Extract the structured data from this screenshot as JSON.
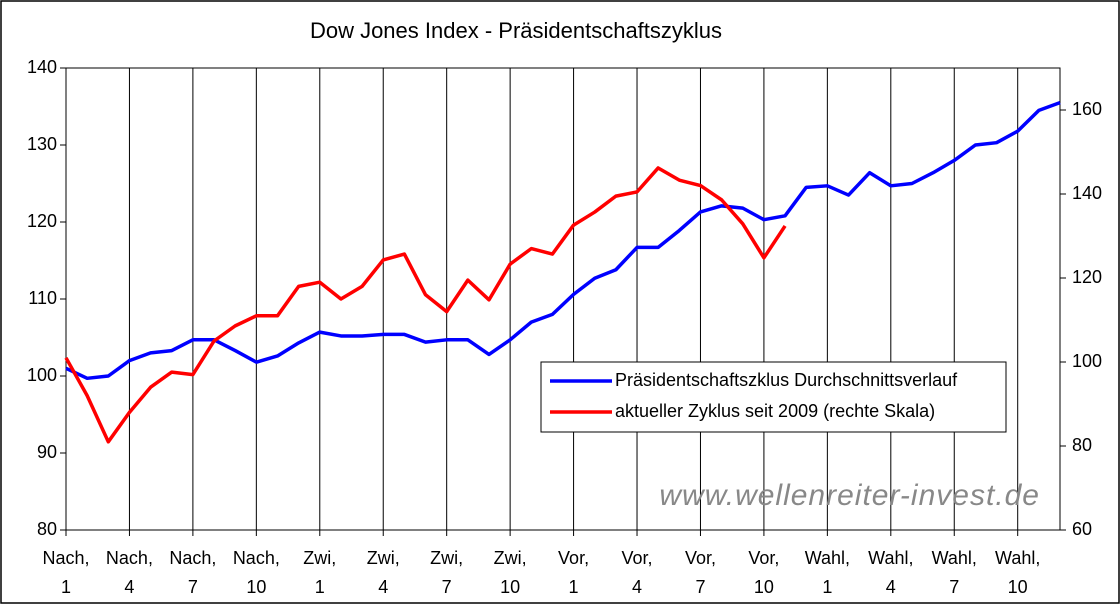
{
  "chart_data": {
    "type": "line",
    "title": "Dow Jones Index - Präsidentschaftszyklus",
    "categories": [
      "Nach,\n1",
      null,
      null,
      "Nach,\n4",
      null,
      null,
      "Nach,\n7",
      null,
      null,
      "Nach,\n10",
      null,
      null,
      "Zwi,\n1",
      null,
      null,
      "Zwi,\n4",
      null,
      null,
      "Zwi,\n7",
      null,
      null,
      "Zwi,\n10",
      null,
      null,
      "Vor,\n1",
      null,
      null,
      "Vor,\n4",
      null,
      null,
      "Vor,\n7",
      null,
      null,
      "Vor,\n10",
      null,
      null,
      "Wahl,\n1",
      null,
      null,
      "Wahl,\n4",
      null,
      null,
      "Wahl,\n7",
      null,
      null,
      "Wahl,\n10",
      null,
      null
    ],
    "series": [
      {
        "name": "Präsidentschaftszklus Durchschnittsverlauf",
        "color": "#0000ff",
        "axis": "y",
        "values": [
          101,
          99.7,
          100,
          102,
          103,
          103.3,
          104.7,
          104.7,
          103.3,
          101.8,
          102.6,
          104.3,
          105.7,
          105.2,
          105.2,
          105.4,
          105.4,
          104.4,
          104.7,
          104.7,
          102.8,
          104.7,
          107,
          108,
          110.6,
          112.7,
          113.8,
          116.7,
          116.7,
          118.9,
          121.3,
          122.1,
          121.8,
          120.3,
          120.8,
          124.5,
          124.7,
          123.5,
          126.4,
          124.7,
          125,
          126.4,
          128,
          130,
          130.3,
          131.8,
          134.5,
          135.5
        ]
      },
      {
        "name": "aktueller Zyklus seit 2009 (rechte Skala)",
        "color": "#ff0000",
        "axis": "y2",
        "values": [
          101,
          92,
          81,
          88,
          94,
          97.6,
          97,
          105,
          108.6,
          111,
          111,
          118,
          119,
          115,
          118,
          124.3,
          125.7,
          116,
          112,
          119.5,
          114.8,
          123.3,
          127,
          125.7,
          132.6,
          135.7,
          139.5,
          140.5,
          146.2,
          143.3,
          142,
          138.6,
          132.9,
          124.8,
          132.4,
          null,
          null,
          null,
          null,
          null,
          null,
          null,
          null,
          null,
          null,
          null,
          null,
          null
        ]
      }
    ],
    "ylim": [
      80,
      140
    ],
    "yticks": [
      80,
      90,
      100,
      110,
      120,
      130,
      140
    ],
    "y2lim": [
      60,
      170
    ],
    "y2ticks": [
      60,
      80,
      100,
      120,
      140,
      160
    ],
    "grid": "x",
    "annotation": "www.wellenreiter-invest.de"
  }
}
